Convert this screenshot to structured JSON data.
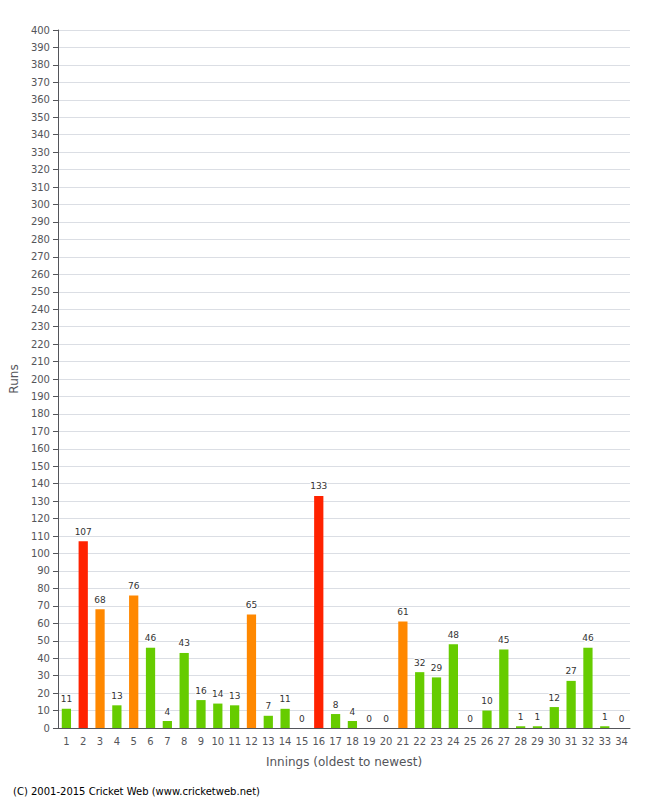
{
  "chart_data": {
    "type": "bar",
    "xlabel": "Innings (oldest to newest)",
    "ylabel": "Runs",
    "annotations": [
      "(C) 2001-2015 Cricket Web (www.cricketweb.net)"
    ],
    "categories": [
      "1",
      "2",
      "3",
      "4",
      "5",
      "6",
      "7",
      "8",
      "9",
      "10",
      "11",
      "12",
      "13",
      "14",
      "15",
      "16",
      "17",
      "18",
      "19",
      "20",
      "21",
      "22",
      "23",
      "24",
      "25",
      "26",
      "27",
      "28",
      "29",
      "30",
      "31",
      "32",
      "33",
      "34"
    ],
    "values": [
      11,
      107,
      68,
      13,
      76,
      46,
      4,
      43,
      16,
      14,
      13,
      65,
      7,
      11,
      0,
      133,
      8,
      4,
      0,
      0,
      61,
      32,
      29,
      48,
      0,
      10,
      45,
      1,
      1,
      12,
      27,
      46,
      1,
      0
    ],
    "colors": [
      "#66cc00",
      "#ff2200",
      "#ff8800",
      "#66cc00",
      "#ff8800",
      "#66cc00",
      "#66cc00",
      "#66cc00",
      "#66cc00",
      "#66cc00",
      "#66cc00",
      "#ff8800",
      "#66cc00",
      "#66cc00",
      "#66cc00",
      "#ff2200",
      "#66cc00",
      "#66cc00",
      "#66cc00",
      "#66cc00",
      "#ff8800",
      "#66cc00",
      "#66cc00",
      "#66cc00",
      "#66cc00",
      "#66cc00",
      "#66cc00",
      "#66cc00",
      "#66cc00",
      "#66cc00",
      "#66cc00",
      "#66cc00",
      "#66cc00",
      "#66cc00"
    ],
    "ylim": [
      0,
      400
    ],
    "yticks": [
      0,
      10,
      20,
      30,
      40,
      50,
      60,
      70,
      80,
      90,
      100,
      110,
      120,
      130,
      140,
      150,
      160,
      170,
      180,
      190,
      200,
      210,
      220,
      230,
      240,
      250,
      260,
      270,
      280,
      290,
      300,
      310,
      320,
      330,
      340,
      350,
      360,
      370,
      380,
      390,
      400
    ],
    "grid": true,
    "data_labels": true
  }
}
